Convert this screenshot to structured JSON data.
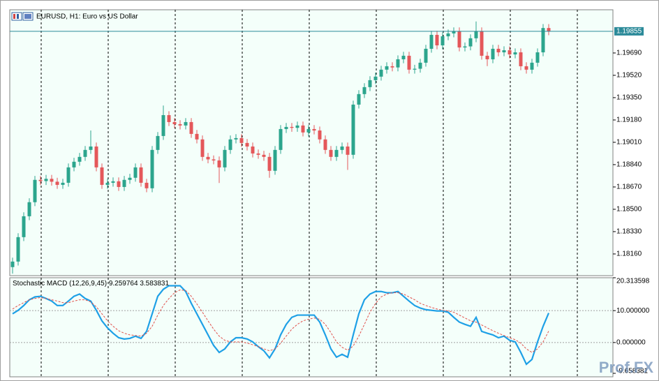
{
  "chart_data": [
    {
      "type": "candlestick",
      "title": "EURUSD, H1:  Euro vs US Dollar",
      "up_color": "#2ca58d",
      "down_color": "#e4575a",
      "ylim": [
        1.17995,
        1.20019
      ],
      "yticks": [
        {
          "value": 1.1969,
          "label": "1.19690"
        },
        {
          "value": 1.1952,
          "label": "1.19520"
        },
        {
          "value": 1.1935,
          "label": "1.19350"
        },
        {
          "value": 1.1918,
          "label": "1.19180"
        },
        {
          "value": 1.1901,
          "label": "1.19010"
        },
        {
          "value": 1.1884,
          "label": "1.18840"
        },
        {
          "value": 1.1867,
          "label": "1.18670"
        },
        {
          "value": 1.185,
          "label": "1.18500"
        },
        {
          "value": 1.1833,
          "label": "1.18330"
        },
        {
          "value": 1.1816,
          "label": "1.18160"
        }
      ],
      "last_price": 1.19855,
      "last_price_color": "#2b8a99",
      "open": [
        1.1806,
        1.18102,
        1.18288,
        1.18447,
        1.18554,
        1.18724,
        1.18715,
        1.18732,
        1.1871,
        1.18686,
        1.18702,
        1.18819,
        1.18862,
        1.18899,
        1.18952,
        1.18978,
        1.18819,
        1.18686,
        1.18702,
        1.18713,
        1.1867,
        1.18724,
        1.1874,
        1.18819,
        1.18702,
        1.1866,
        1.18952,
        1.19058,
        1.19217,
        1.19164,
        1.19148,
        1.19138,
        1.19164,
        1.19074,
        1.19032,
        1.18899,
        1.1888,
        1.18872,
        1.18819,
        1.18952,
        1.19032,
        1.19042,
        1.19005,
        1.18978,
        1.18925,
        1.18915,
        1.18899,
        1.18793,
        1.18952,
        1.19111,
        1.19127,
        1.1912,
        1.19138,
        1.19085,
        1.19111,
        1.191,
        1.19032,
        1.18952,
        1.18899,
        1.18952,
        1.18978,
        1.18915,
        1.19297,
        1.19377,
        1.1943,
        1.19483,
        1.1951,
        1.19563,
        1.19589,
        1.1958,
        1.19642,
        1.19669,
        1.19563,
        1.1957,
        1.19616,
        1.19722,
        1.19828,
        1.19748,
        1.19817,
        1.19839,
        1.19855,
        1.19732,
        1.1974,
        1.19802,
        1.19855,
        1.19669,
        1.19642,
        1.19722,
        1.19695,
        1.19711,
        1.19679,
        1.19695,
        1.19589,
        1.19563,
        1.19616,
        1.19695,
        1.1988
      ],
      "high": [
        1.18132,
        1.18318,
        1.18477,
        1.18584,
        1.18754,
        1.18754,
        1.18762,
        1.18762,
        1.1874,
        1.18732,
        1.18849,
        1.18892,
        1.18929,
        1.18982,
        1.191,
        1.19008,
        1.18849,
        1.18732,
        1.18743,
        1.18743,
        1.18754,
        1.1877,
        1.18849,
        1.18849,
        1.18732,
        1.18982,
        1.19088,
        1.1929,
        1.19247,
        1.19194,
        1.19178,
        1.19194,
        1.19194,
        1.19104,
        1.19062,
        1.18929,
        1.1891,
        1.18902,
        1.18982,
        1.19062,
        1.19072,
        1.19072,
        1.19035,
        1.19008,
        1.18955,
        1.18945,
        1.18929,
        1.18982,
        1.19141,
        1.19157,
        1.19157,
        1.19168,
        1.19168,
        1.19141,
        1.19141,
        1.1913,
        1.19062,
        1.18982,
        1.18982,
        1.19008,
        1.19008,
        1.19327,
        1.19407,
        1.1946,
        1.19513,
        1.1954,
        1.19593,
        1.19619,
        1.19619,
        1.19672,
        1.19699,
        1.19699,
        1.196,
        1.19646,
        1.19752,
        1.19858,
        1.19858,
        1.19847,
        1.19869,
        1.19885,
        1.19885,
        1.1977,
        1.19832,
        1.1993,
        1.19885,
        1.19699,
        1.19752,
        1.19752,
        1.19741,
        1.19741,
        1.19725,
        1.19725,
        1.19619,
        1.19646,
        1.19725,
        1.1991,
        1.1991
      ],
      "low": [
        1.1801,
        1.18072,
        1.18258,
        1.18417,
        1.18524,
        1.18685,
        1.18685,
        1.1868,
        1.18656,
        1.18656,
        1.18672,
        1.18789,
        1.18832,
        1.18869,
        1.18922,
        1.18789,
        1.18656,
        1.18656,
        1.18672,
        1.1864,
        1.1864,
        1.18694,
        1.1871,
        1.18672,
        1.1863,
        1.1863,
        1.18922,
        1.19028,
        1.19134,
        1.19118,
        1.19108,
        1.19108,
        1.19044,
        1.19002,
        1.18869,
        1.1885,
        1.18842,
        1.187,
        1.18789,
        1.18922,
        1.19002,
        1.18975,
        1.18948,
        1.18895,
        1.18885,
        1.18869,
        1.1874,
        1.18763,
        1.18922,
        1.19081,
        1.1909,
        1.1909,
        1.19055,
        1.19055,
        1.1907,
        1.19002,
        1.18922,
        1.18869,
        1.18869,
        1.18922,
        1.188,
        1.18885,
        1.19267,
        1.19347,
        1.194,
        1.19453,
        1.1948,
        1.19533,
        1.1955,
        1.1955,
        1.19612,
        1.19533,
        1.19533,
        1.1954,
        1.19586,
        1.19692,
        1.19718,
        1.19718,
        1.19787,
        1.19809,
        1.19702,
        1.19702,
        1.1971,
        1.19772,
        1.19639,
        1.1959,
        1.19612,
        1.19665,
        1.19665,
        1.19649,
        1.19649,
        1.19559,
        1.19533,
        1.19533,
        1.19586,
        1.19665,
        1.19825
      ],
      "close": [
        1.18102,
        1.18288,
        1.18447,
        1.18554,
        1.18724,
        1.18715,
        1.18732,
        1.1871,
        1.18686,
        1.18702,
        1.18819,
        1.18862,
        1.18899,
        1.18952,
        1.18978,
        1.18819,
        1.18686,
        1.18702,
        1.18713,
        1.1867,
        1.18724,
        1.1874,
        1.18819,
        1.18702,
        1.1866,
        1.18952,
        1.19058,
        1.19217,
        1.19164,
        1.19148,
        1.19138,
        1.19164,
        1.19074,
        1.19032,
        1.18899,
        1.1888,
        1.18872,
        1.18819,
        1.18952,
        1.19032,
        1.19042,
        1.19005,
        1.18978,
        1.18925,
        1.18915,
        1.18899,
        1.18793,
        1.18952,
        1.19111,
        1.19127,
        1.1912,
        1.19138,
        1.19085,
        1.19111,
        1.191,
        1.19032,
        1.18952,
        1.18899,
        1.18952,
        1.18978,
        1.18915,
        1.19297,
        1.19377,
        1.1943,
        1.19483,
        1.1951,
        1.19563,
        1.19589,
        1.1958,
        1.19642,
        1.19669,
        1.19563,
        1.1957,
        1.19616,
        1.19722,
        1.19828,
        1.19748,
        1.19817,
        1.19839,
        1.19855,
        1.19732,
        1.1974,
        1.19802,
        1.19855,
        1.19669,
        1.19642,
        1.19722,
        1.19695,
        1.19711,
        1.19679,
        1.19695,
        1.19589,
        1.19563,
        1.19616,
        1.19695,
        1.1988,
        1.19855
      ]
    },
    {
      "type": "line",
      "title": "Stochastic MACD (12,26,9,45)",
      "ylim": [
        -9.658381,
        20.313598
      ],
      "yticks": [
        20.313598,
        {
          "value": 10,
          "label": "10.000000"
        },
        {
          "value": 0,
          "label": "0.000000"
        },
        -9.658381
      ],
      "series": [
        {
          "color": "#1ea0e6",
          "style": "solid",
          "values": [
            9.0,
            10.1,
            11.6,
            13.4,
            14.3,
            14.5,
            13.8,
            13.0,
            11.6,
            11.6,
            13.0,
            14.5,
            15.2,
            13.8,
            13.0,
            10.1,
            6.8,
            4.6,
            2.9,
            1.5,
            1.1,
            1.3,
            2.0,
            1.3,
            3.5,
            9.0,
            14.5,
            16.7,
            17.8,
            17.8,
            17.8,
            16.0,
            12.3,
            9.0,
            5.7,
            2.4,
            -0.9,
            -3.1,
            -2.0,
            0.2,
            1.5,
            1.5,
            1.1,
            0.2,
            -1.3,
            -2.6,
            -4.8,
            -2.0,
            2.4,
            5.7,
            7.9,
            8.6,
            8.6,
            8.6,
            8.6,
            6.4,
            2.4,
            -2.0,
            -4.6,
            -3.7,
            -4.6,
            2.4,
            9.0,
            13.4,
            15.2,
            16.0,
            16.0,
            15.6,
            15.6,
            16.0,
            14.5,
            13.0,
            11.6,
            10.8,
            10.3,
            10.1,
            9.9,
            9.9,
            9.5,
            7.9,
            6.4,
            5.7,
            5.1,
            7.9,
            3.5,
            2.9,
            2.4,
            1.5,
            2.0,
            0.7,
            0.2,
            -3.1,
            -6.8,
            -5.3,
            0.2,
            5.1,
            9.259764
          ]
        },
        {
          "color": "#e0504a",
          "style": "dashed",
          "values": [
            10.5,
            11.6,
            12.5,
            13.4,
            13.8,
            14.1,
            13.8,
            13.4,
            13.0,
            12.5,
            12.5,
            13.0,
            13.4,
            13.4,
            12.7,
            11.2,
            9.0,
            6.8,
            5.1,
            3.7,
            2.9,
            2.4,
            2.2,
            2.0,
            2.9,
            5.1,
            8.6,
            11.6,
            13.8,
            15.6,
            16.5,
            16.3,
            14.5,
            12.1,
            9.5,
            6.8,
            4.2,
            2.0,
            0.7,
            0.2,
            0.2,
            0.2,
            -0.2,
            -0.7,
            -1.3,
            -2.0,
            -2.6,
            -2.0,
            -0.2,
            2.0,
            4.2,
            5.7,
            6.8,
            7.3,
            7.7,
            7.3,
            5.7,
            3.1,
            0.2,
            -1.5,
            -2.4,
            -1.1,
            2.0,
            5.7,
            9.5,
            12.3,
            14.3,
            15.2,
            15.6,
            15.6,
            15.2,
            14.3,
            13.4,
            12.3,
            11.6,
            11.0,
            10.5,
            10.1,
            9.9,
            9.5,
            8.6,
            7.7,
            6.8,
            6.4,
            5.5,
            4.6,
            3.7,
            2.9,
            2.2,
            1.5,
            0.9,
            -0.2,
            -2.0,
            -3.1,
            -2.0,
            0.2,
            3.583831
          ]
        }
      ]
    }
  ],
  "watermark": "Prof.FX"
}
